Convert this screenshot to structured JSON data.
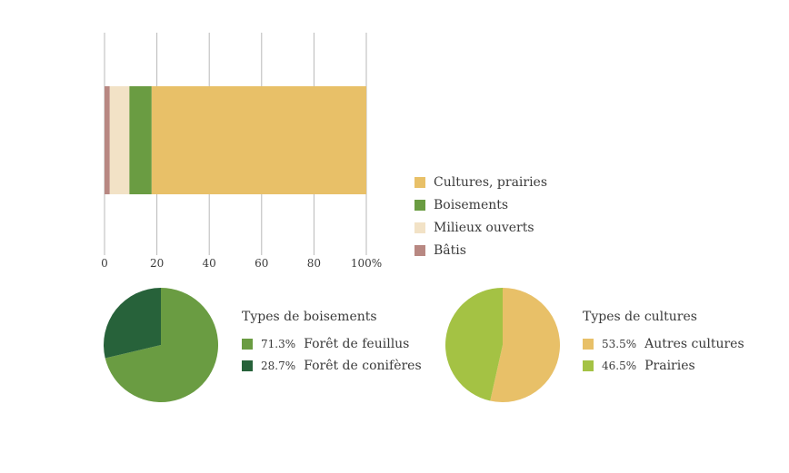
{
  "chart_data": [
    {
      "type": "bar",
      "orientation": "horizontal",
      "stacked": true,
      "x_ticks": [
        "0",
        "20",
        "40",
        "60",
        "80",
        "100%"
      ],
      "xlim": [
        0,
        100
      ],
      "grid": true,
      "legend_placement": "right",
      "series": [
        {
          "name": "Bâtis",
          "value": 2,
          "color": "#b88882"
        },
        {
          "name": "Milieux ouverts",
          "value": 7.5,
          "color": "#f2e2c6"
        },
        {
          "name": "Boisements",
          "value": 8.5,
          "color": "#6a9c42"
        },
        {
          "name": "Cultures, prairies",
          "value": 82,
          "color": "#e8c068"
        }
      ],
      "legend": [
        {
          "label": "Cultures, prairies",
          "color": "#e8c068"
        },
        {
          "label": "Boisements",
          "color": "#6a9c42"
        },
        {
          "label": "Milieux ouverts",
          "color": "#f2e2c6"
        },
        {
          "label": "Bâtis",
          "color": "#b88882"
        }
      ]
    },
    {
      "type": "pie",
      "title": "Types de boisements",
      "slices": [
        {
          "label": "Forêt de feuillus",
          "value": 71.3,
          "pct": "71.3%",
          "color": "#6a9c42"
        },
        {
          "label": "Forêt de conifères",
          "value": 28.7,
          "pct": "28.7%",
          "color": "#27623a"
        }
      ]
    },
    {
      "type": "pie",
      "title": "Types de cultures",
      "slices": [
        {
          "label": "Autres cultures",
          "value": 53.5,
          "pct": "53.5%",
          "color": "#e8c068"
        },
        {
          "label": "Prairies",
          "value": 46.5,
          "pct": "46.5%",
          "color": "#a4c244"
        }
      ]
    }
  ]
}
